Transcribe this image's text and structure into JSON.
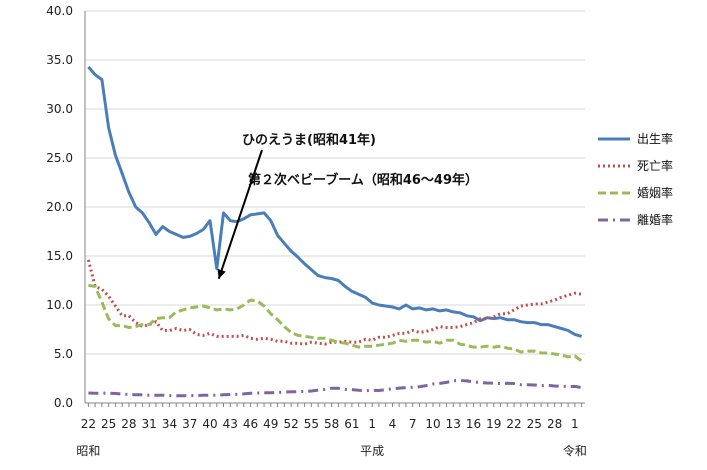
{
  "chart_data": {
    "type": "line",
    "title": "",
    "xlabel": "",
    "ylabel": "",
    "ylim": [
      0,
      40
    ],
    "yticks": [
      "0.0",
      "5.0",
      "10.0",
      "15.0",
      "20.0",
      "25.0",
      "30.0",
      "35.0",
      "40.0"
    ],
    "grid": "horizontal",
    "legend_position": "right",
    "x": [
      1947,
      1948,
      1949,
      1950,
      1951,
      1952,
      1953,
      1954,
      1955,
      1956,
      1957,
      1958,
      1959,
      1960,
      1961,
      1962,
      1963,
      1964,
      1965,
      1966,
      1967,
      1968,
      1969,
      1970,
      1971,
      1972,
      1973,
      1974,
      1975,
      1976,
      1977,
      1978,
      1979,
      1980,
      1981,
      1982,
      1983,
      1984,
      1985,
      1986,
      1987,
      1988,
      1989,
      1990,
      1991,
      1992,
      1993,
      1994,
      1995,
      1996,
      1997,
      1998,
      1999,
      2000,
      2001,
      2002,
      2003,
      2004,
      2005,
      2006,
      2007,
      2008,
      2009,
      2010,
      2011,
      2012,
      2013,
      2014,
      2015,
      2016,
      2017,
      2018,
      2019,
      2020
    ],
    "xtick_labels": [
      {
        "year": 1947,
        "label": "22"
      },
      {
        "year": 1950,
        "label": "25"
      },
      {
        "year": 1953,
        "label": "28"
      },
      {
        "year": 1956,
        "label": "31"
      },
      {
        "year": 1959,
        "label": "34"
      },
      {
        "year": 1962,
        "label": "37"
      },
      {
        "year": 1965,
        "label": "40"
      },
      {
        "year": 1968,
        "label": "43"
      },
      {
        "year": 1971,
        "label": "46"
      },
      {
        "year": 1974,
        "label": "49"
      },
      {
        "year": 1977,
        "label": "52"
      },
      {
        "year": 1980,
        "label": "55"
      },
      {
        "year": 1983,
        "label": "58"
      },
      {
        "year": 1986,
        "label": "61"
      },
      {
        "year": 1989,
        "label": "1"
      },
      {
        "year": 1992,
        "label": "4"
      },
      {
        "year": 1995,
        "label": "7"
      },
      {
        "year": 1998,
        "label": "10"
      },
      {
        "year": 2001,
        "label": "13"
      },
      {
        "year": 2004,
        "label": "16"
      },
      {
        "year": 2007,
        "label": "19"
      },
      {
        "year": 2010,
        "label": "22"
      },
      {
        "year": 2013,
        "label": "25"
      },
      {
        "year": 2016,
        "label": "28"
      },
      {
        "year": 2019,
        "label": "1"
      }
    ],
    "era_labels": [
      {
        "year": 1947,
        "label": "昭和"
      },
      {
        "year": 1989,
        "label": "平成"
      },
      {
        "year": 2019,
        "label": "令和"
      }
    ],
    "series": [
      {
        "name": "出生率",
        "color": "#4a7ebb",
        "dash": "solid",
        "values": [
          34.3,
          33.5,
          33.0,
          28.1,
          25.3,
          23.4,
          21.5,
          20.0,
          19.4,
          18.4,
          17.2,
          18.0,
          17.5,
          17.2,
          16.9,
          17.0,
          17.3,
          17.7,
          18.6,
          13.7,
          19.4,
          18.6,
          18.5,
          18.8,
          19.2,
          19.3,
          19.4,
          18.6,
          17.1,
          16.3,
          15.5,
          14.9,
          14.2,
          13.6,
          13.0,
          12.8,
          12.7,
          12.5,
          11.9,
          11.4,
          11.1,
          10.8,
          10.2,
          10.0,
          9.9,
          9.8,
          9.6,
          10.0,
          9.6,
          9.7,
          9.5,
          9.6,
          9.4,
          9.5,
          9.3,
          9.2,
          8.9,
          8.8,
          8.4,
          8.7,
          8.6,
          8.7,
          8.5,
          8.5,
          8.3,
          8.2,
          8.2,
          8.0,
          8.0,
          7.8,
          7.6,
          7.4,
          7.0,
          6.8
        ]
      },
      {
        "name": "死亡率",
        "color": "#c0504d",
        "dash": "dotted",
        "values": [
          14.6,
          11.9,
          11.6,
          10.9,
          9.9,
          8.9,
          8.9,
          8.2,
          7.8,
          8.0,
          8.3,
          7.4,
          7.4,
          7.6,
          7.4,
          7.5,
          7.0,
          6.9,
          7.1,
          6.8,
          6.8,
          6.8,
          6.8,
          6.9,
          6.6,
          6.5,
          6.6,
          6.5,
          6.3,
          6.3,
          6.1,
          6.1,
          6.0,
          6.2,
          6.1,
          6.0,
          6.2,
          6.2,
          6.3,
          6.2,
          6.2,
          6.5,
          6.4,
          6.7,
          6.7,
          6.9,
          7.1,
          7.1,
          7.4,
          7.2,
          7.3,
          7.5,
          7.8,
          7.7,
          7.7,
          7.8,
          8.0,
          8.2,
          8.6,
          8.6,
          8.8,
          9.1,
          9.1,
          9.5,
          9.9,
          10.0,
          10.1,
          10.1,
          10.3,
          10.5,
          10.8,
          11.0,
          11.2,
          11.1
        ]
      },
      {
        "name": "婚姻率",
        "color": "#9bbb59",
        "dash": "dashed",
        "values": [
          12.0,
          11.9,
          10.3,
          8.6,
          7.9,
          7.9,
          7.7,
          7.8,
          8.0,
          8.0,
          8.6,
          8.7,
          8.7,
          9.3,
          9.5,
          9.7,
          9.8,
          9.9,
          9.7,
          9.5,
          9.6,
          9.5,
          9.6,
          10.0,
          10.5,
          10.4,
          9.9,
          9.1,
          8.5,
          7.8,
          7.2,
          6.9,
          6.8,
          6.7,
          6.6,
          6.6,
          6.4,
          6.2,
          6.1,
          5.9,
          5.7,
          5.8,
          5.8,
          5.9,
          6.0,
          6.1,
          6.4,
          6.3,
          6.4,
          6.4,
          6.2,
          6.3,
          6.1,
          6.4,
          6.4,
          6.0,
          5.9,
          5.7,
          5.7,
          5.8,
          5.7,
          5.8,
          5.6,
          5.5,
          5.2,
          5.3,
          5.3,
          5.1,
          5.1,
          5.0,
          4.9,
          4.7,
          4.8,
          4.3
        ]
      },
      {
        "name": "離婚率",
        "color": "#8064a2",
        "dash": "dashdot",
        "values": [
          1.02,
          0.99,
          1.01,
          1.01,
          0.97,
          0.92,
          0.87,
          0.85,
          0.84,
          0.8,
          0.8,
          0.8,
          0.76,
          0.74,
          0.74,
          0.75,
          0.77,
          0.79,
          0.79,
          0.8,
          0.84,
          0.87,
          0.89,
          0.93,
          0.99,
          1.02,
          1.04,
          1.04,
          1.07,
          1.11,
          1.14,
          1.15,
          1.17,
          1.22,
          1.32,
          1.39,
          1.51,
          1.5,
          1.39,
          1.37,
          1.3,
          1.26,
          1.29,
          1.28,
          1.37,
          1.45,
          1.52,
          1.57,
          1.6,
          1.66,
          1.78,
          1.94,
          2.0,
          2.1,
          2.27,
          2.3,
          2.25,
          2.15,
          2.08,
          2.04,
          2.02,
          1.99,
          2.01,
          1.99,
          1.87,
          1.87,
          1.84,
          1.77,
          1.81,
          1.73,
          1.7,
          1.68,
          1.69,
          1.57
        ]
      }
    ],
    "annotations": [
      {
        "text": "ひのえうま(昭和41年)",
        "year": 1966,
        "value": 13.7
      },
      {
        "text": "第２次ベビーブーム（昭和46〜49年）",
        "year": 1971,
        "value": 19.2
      }
    ]
  }
}
